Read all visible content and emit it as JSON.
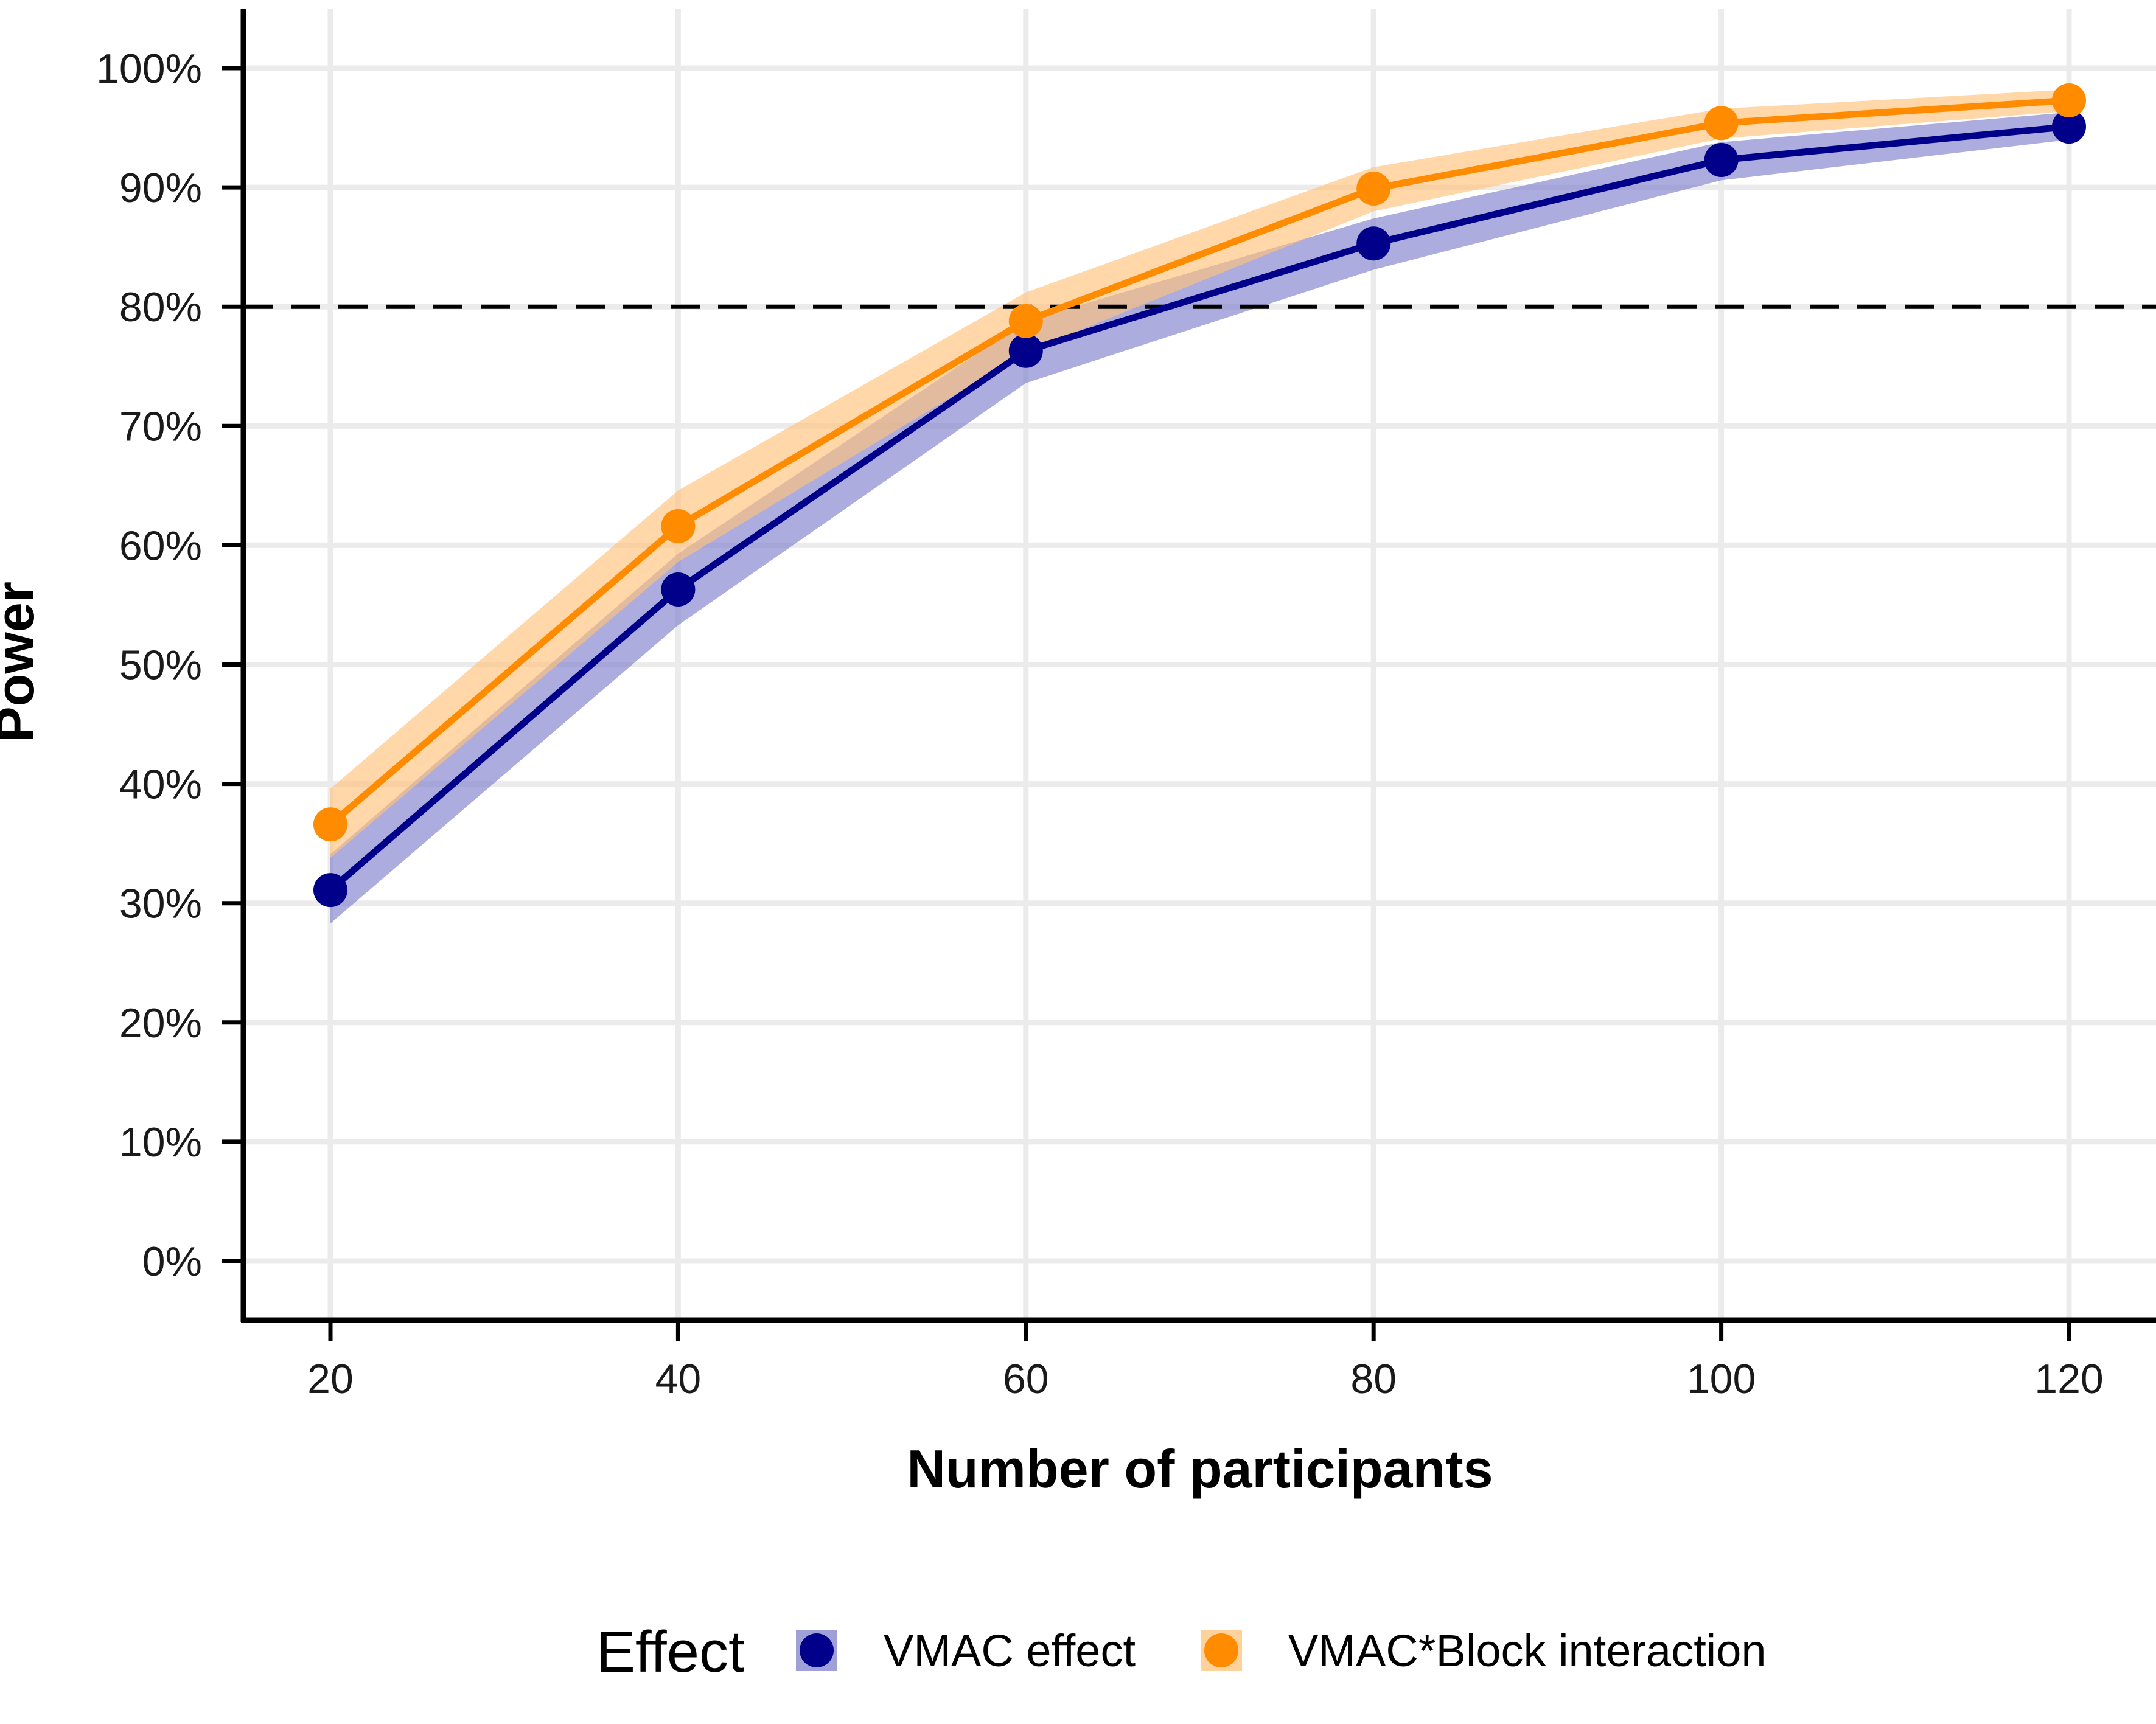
{
  "chart_data": {
    "type": "line",
    "title": "",
    "xlabel": "Number of participants",
    "ylabel": "Power",
    "x": [
      20,
      40,
      60,
      80,
      100,
      120
    ],
    "x_ticks": [
      "20",
      "40",
      "60",
      "80",
      "100",
      "120"
    ],
    "y_ticks": [
      "0%",
      "10%",
      "20%",
      "30%",
      "40%",
      "50%",
      "60%",
      "70%",
      "80%",
      "90%",
      "100%"
    ],
    "y_tick_values": [
      0,
      10,
      20,
      30,
      40,
      50,
      60,
      70,
      80,
      90,
      100
    ],
    "xlim": [
      15,
      125
    ],
    "ylim": [
      -5,
      105
    ],
    "grid": true,
    "reference_line": {
      "y": 80,
      "style": "dashed",
      "color": "#000000"
    },
    "legend": {
      "title": "Effect",
      "placement": "bottom"
    },
    "series": [
      {
        "name": "VMAC effect",
        "color": "#00008B",
        "band_color": "#8080CC",
        "values": [
          31.1,
          56.3,
          76.3,
          85.3,
          92.3,
          95.1
        ],
        "lower": [
          28.3,
          53.3,
          73.6,
          83.1,
          90.6,
          94.0
        ],
        "upper": [
          34.1,
          59.3,
          78.8,
          87.4,
          93.8,
          96.3
        ]
      },
      {
        "name": "VMAC*Block interaction",
        "color": "#FF8C00",
        "band_color": "#FFC27A",
        "values": [
          36.6,
          61.6,
          78.8,
          89.9,
          95.4,
          97.3
        ],
        "lower": [
          33.8,
          58.6,
          76.2,
          88.0,
          94.1,
          96.4
        ],
        "upper": [
          39.6,
          64.6,
          81.2,
          91.7,
          96.6,
          98.2
        ]
      }
    ]
  }
}
